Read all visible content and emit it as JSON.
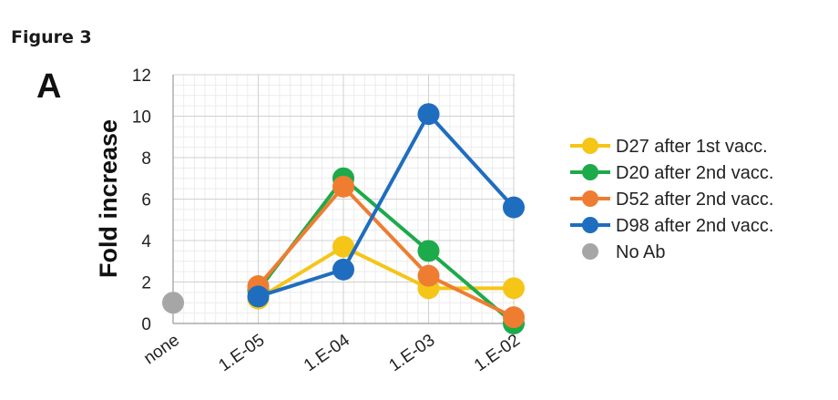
{
  "figure": {
    "title": "Figure 3",
    "panel": "A"
  },
  "chart_data": {
    "type": "line",
    "title": "",
    "xlabel": "",
    "ylabel": "Fold increase",
    "categories": [
      "none",
      "1.E-05",
      "1.E-04",
      "1.E-03",
      "1.E-02"
    ],
    "ylim": [
      0,
      12
    ],
    "yticks": [
      0,
      2,
      4,
      6,
      8,
      10,
      12
    ],
    "grid": true,
    "legend_position": "right",
    "series": [
      {
        "name": "D27 after 1st vacc.",
        "color": "#F5C518",
        "values": [
          null,
          1.2,
          3.7,
          1.7,
          1.7
        ]
      },
      {
        "name": "D20 after 2nd vacc.",
        "color": "#1DAA4B",
        "values": [
          null,
          1.6,
          7.0,
          3.5,
          0.0
        ]
      },
      {
        "name": "D52 after 2nd vacc.",
        "color": "#EE7D31",
        "values": [
          null,
          1.8,
          6.6,
          2.3,
          0.3
        ]
      },
      {
        "name": "D98 after 2nd vacc.",
        "color": "#1F6DBF",
        "values": [
          null,
          1.3,
          2.6,
          10.1,
          5.6
        ]
      }
    ],
    "extra_points": [
      {
        "name": "No Ab",
        "color": "#A6A6A6",
        "category": "none",
        "value": 1.0
      }
    ]
  }
}
